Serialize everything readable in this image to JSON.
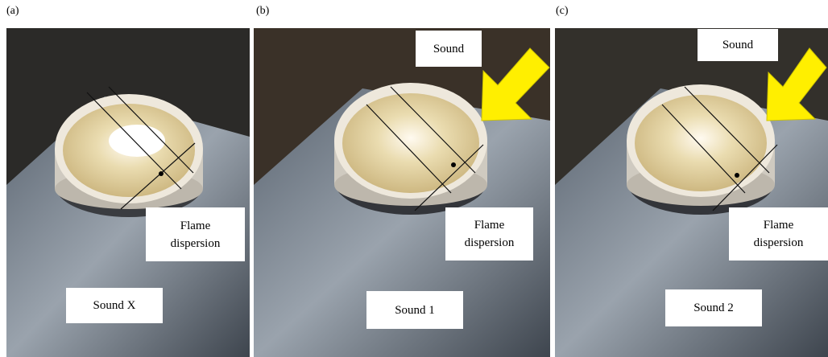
{
  "panels": [
    {
      "label": "(a)",
      "sound": "Sound X",
      "flame": [
        "Flame",
        "dispersion"
      ]
    },
    {
      "label": "(b)",
      "arrow_label": "Sound",
      "sound": "Sound 1",
      "flame": [
        "Flame",
        "dispersion"
      ]
    },
    {
      "label": "(c)",
      "arrow_label": "Sound",
      "sound": "Sound 2",
      "flame": [
        "Flame",
        "dispersion"
      ]
    }
  ]
}
